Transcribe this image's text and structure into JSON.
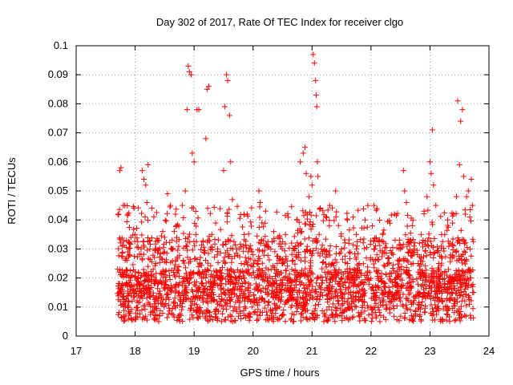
{
  "chart_data": {
    "type": "scatter",
    "title": "Day 302 of 2017, Rate Of TEC Index for receiver clgo",
    "xlabel": "GPS time / hours",
    "ylabel": "ROTI / TECUs",
    "xlim": [
      17,
      24
    ],
    "ylim": [
      0,
      0.1
    ],
    "x_ticks": [
      17,
      18,
      19,
      20,
      21,
      22,
      23,
      24
    ],
    "x_tick_labels": [
      "17",
      "18",
      "19",
      "20",
      "21",
      "22",
      "23",
      "24"
    ],
    "y_ticks": [
      0,
      0.01,
      0.02,
      0.03,
      0.04,
      0.05,
      0.06,
      0.07,
      0.08,
      0.09,
      0.1
    ],
    "y_tick_labels": [
      "0",
      "0.01",
      "0.02",
      "0.03",
      "0.04",
      "0.05",
      "0.06",
      "0.07",
      "0.08",
      "0.09",
      "0.1"
    ],
    "grid": true,
    "marker": "+",
    "color": "#ff0000",
    "series": [
      {
        "name": "ROTI",
        "x_start": 17.7,
        "x_end": 23.75,
        "note": "dense scatter; representative sample below",
        "points": [
          [
            17.72,
            0.042
          ],
          [
            17.74,
            0.057
          ],
          [
            17.76,
            0.058
          ],
          [
            17.78,
            0.031
          ],
          [
            17.73,
            0.015
          ],
          [
            17.75,
            0.012
          ],
          [
            17.8,
            0.045
          ],
          [
            17.82,
            0.022
          ],
          [
            17.85,
            0.018
          ],
          [
            17.9,
            0.028
          ],
          [
            17.95,
            0.012
          ],
          [
            18.0,
            0.035
          ],
          [
            18.05,
            0.02
          ],
          [
            18.1,
            0.014
          ],
          [
            18.12,
            0.057
          ],
          [
            18.15,
            0.054
          ],
          [
            18.18,
            0.052
          ],
          [
            18.2,
            0.046
          ],
          [
            18.22,
            0.059
          ],
          [
            18.25,
            0.03
          ],
          [
            18.3,
            0.01
          ],
          [
            18.35,
            0.025
          ],
          [
            18.4,
            0.005
          ],
          [
            18.45,
            0.018
          ],
          [
            18.5,
            0.034
          ],
          [
            18.55,
            0.049
          ],
          [
            18.6,
            0.045
          ],
          [
            18.65,
            0.022
          ],
          [
            18.7,
            0.038
          ],
          [
            18.75,
            0.015
          ],
          [
            18.8,
            0.045
          ],
          [
            18.85,
            0.05
          ],
          [
            18.88,
            0.078
          ],
          [
            18.9,
            0.093
          ],
          [
            18.92,
            0.091
          ],
          [
            18.95,
            0.09
          ],
          [
            18.97,
            0.063
          ],
          [
            19.0,
            0.06
          ],
          [
            19.03,
            0.035
          ],
          [
            19.05,
            0.078
          ],
          [
            19.08,
            0.078
          ],
          [
            19.1,
            0.025
          ],
          [
            19.15,
            0.015
          ],
          [
            19.2,
            0.068
          ],
          [
            19.22,
            0.085
          ],
          [
            19.25,
            0.086
          ],
          [
            19.3,
            0.035
          ],
          [
            19.35,
            0.02
          ],
          [
            19.4,
            0.03
          ],
          [
            19.45,
            0.012
          ],
          [
            19.5,
            0.057
          ],
          [
            19.52,
            0.079
          ],
          [
            19.55,
            0.09
          ],
          [
            19.57,
            0.088
          ],
          [
            19.6,
            0.076
          ],
          [
            19.62,
            0.06
          ],
          [
            19.65,
            0.047
          ],
          [
            19.7,
            0.02
          ],
          [
            19.75,
            0.013
          ],
          [
            19.8,
            0.025
          ],
          [
            19.85,
            0.035
          ],
          [
            19.9,
            0.042
          ],
          [
            19.95,
            0.015
          ],
          [
            20.0,
            0.028
          ],
          [
            20.05,
            0.018
          ],
          [
            20.1,
            0.05
          ],
          [
            20.12,
            0.046
          ],
          [
            20.15,
            0.039
          ],
          [
            20.2,
            0.012
          ],
          [
            20.25,
            0.02
          ],
          [
            20.3,
            0.03
          ],
          [
            20.35,
            0.036
          ],
          [
            20.4,
            0.018
          ],
          [
            20.45,
            0.01
          ],
          [
            20.5,
            0.025
          ],
          [
            20.55,
            0.035
          ],
          [
            20.6,
            0.012
          ],
          [
            20.65,
            0.006
          ],
          [
            20.7,
            0.03
          ],
          [
            20.75,
            0.04
          ],
          [
            20.8,
            0.06
          ],
          [
            20.85,
            0.063
          ],
          [
            20.88,
            0.065
          ],
          [
            20.9,
            0.056
          ],
          [
            20.92,
            0.042
          ],
          [
            20.95,
            0.048
          ],
          [
            20.98,
            0.055
          ],
          [
            21.0,
            0.052
          ],
          [
            21.02,
            0.097
          ],
          [
            21.04,
            0.094
          ],
          [
            21.06,
            0.088
          ],
          [
            21.07,
            0.083
          ],
          [
            21.08,
            0.079
          ],
          [
            21.09,
            0.06
          ],
          [
            21.1,
            0.055
          ],
          [
            21.12,
            0.035
          ],
          [
            21.15,
            0.015
          ],
          [
            21.2,
            0.005
          ],
          [
            21.25,
            0.028
          ],
          [
            21.3,
            0.045
          ],
          [
            21.35,
            0.025
          ],
          [
            21.4,
            0.05
          ],
          [
            21.45,
            0.018
          ],
          [
            21.5,
            0.03
          ],
          [
            21.55,
            0.012
          ],
          [
            21.6,
            0.04
          ],
          [
            21.65,
            0.022
          ],
          [
            21.7,
            0.015
          ],
          [
            21.75,
            0.035
          ],
          [
            21.8,
            0.025
          ],
          [
            21.85,
            0.012
          ],
          [
            21.9,
            0.04
          ],
          [
            21.95,
            0.02
          ],
          [
            22.0,
            0.01
          ],
          [
            22.05,
            0.045
          ],
          [
            22.1,
            0.028
          ],
          [
            22.15,
            0.005
          ],
          [
            22.2,
            0.035
          ],
          [
            22.25,
            0.015
          ],
          [
            22.3,
            0.025
          ],
          [
            22.35,
            0.012
          ],
          [
            22.4,
            0.042
          ],
          [
            22.45,
            0.018
          ],
          [
            22.5,
            0.03
          ],
          [
            22.55,
            0.057
          ],
          [
            22.57,
            0.05
          ],
          [
            22.6,
            0.046
          ],
          [
            22.65,
            0.02
          ],
          [
            22.7,
            0.038
          ],
          [
            22.75,
            0.013
          ],
          [
            22.8,
            0.025
          ],
          [
            22.85,
            0.035
          ],
          [
            22.9,
            0.043
          ],
          [
            22.95,
            0.048
          ],
          [
            23.0,
            0.06
          ],
          [
            23.02,
            0.056
          ],
          [
            23.04,
            0.071
          ],
          [
            23.06,
            0.052
          ],
          [
            23.1,
            0.045
          ],
          [
            23.15,
            0.025
          ],
          [
            23.2,
            0.012
          ],
          [
            23.25,
            0.035
          ],
          [
            23.3,
            0.04
          ],
          [
            23.35,
            0.018
          ],
          [
            23.4,
            0.042
          ],
          [
            23.45,
            0.048
          ],
          [
            23.47,
            0.081
          ],
          [
            23.5,
            0.059
          ],
          [
            23.52,
            0.074
          ],
          [
            23.55,
            0.078
          ],
          [
            23.57,
            0.055
          ],
          [
            23.6,
            0.042
          ],
          [
            23.62,
            0.048
          ],
          [
            23.65,
            0.05
          ],
          [
            23.68,
            0.03
          ],
          [
            23.7,
            0.054
          ],
          [
            23.72,
            0.045
          ],
          [
            23.74,
            0.015
          ]
        ]
      }
    ]
  }
}
